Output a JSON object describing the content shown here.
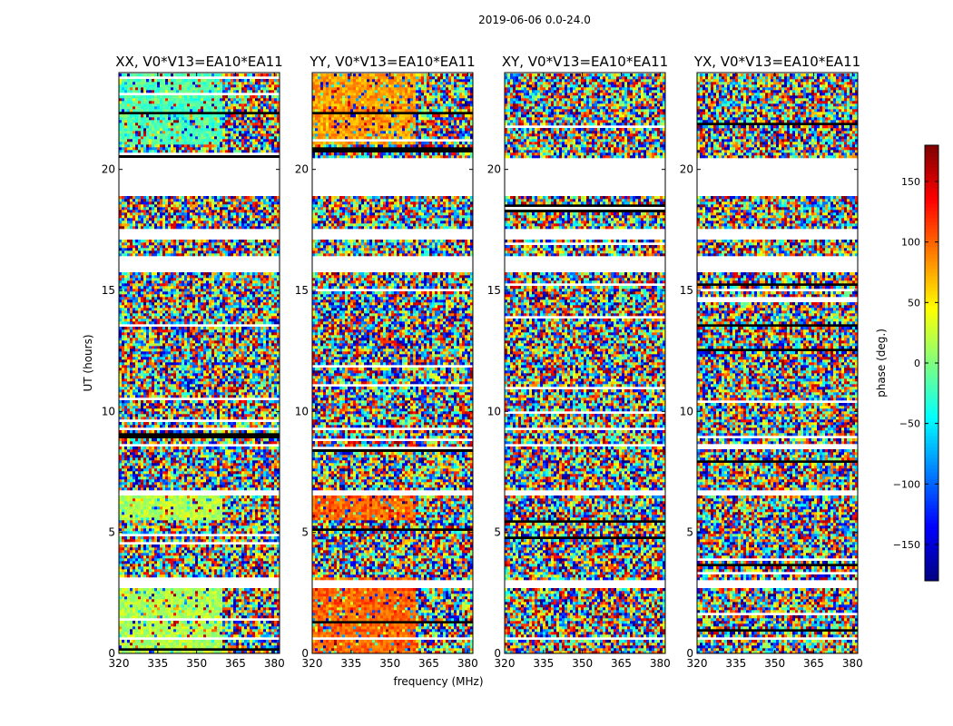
{
  "figure": {
    "suptitle": "2019-06-06 0.0-24.0"
  },
  "chart_data": {
    "type": "heatmap",
    "title": "2019-06-06 0.0-24.0",
    "xlabel": "frequency (MHz)",
    "ylabel": "UT (hours)",
    "xlim": [
      320,
      382
    ],
    "ylim": [
      0,
      24
    ],
    "x_ticks": [
      320,
      335,
      350,
      365,
      380
    ],
    "y_ticks": [
      0,
      5,
      10,
      15,
      20
    ],
    "panels": [
      {
        "title": "XX, V0*V13=EA10*EA11",
        "polarization": "XX"
      },
      {
        "title": "YY, V0*V13=EA10*EA11",
        "polarization": "YY"
      },
      {
        "title": "XY, V0*V13=EA10*EA11",
        "polarization": "XY"
      },
      {
        "title": "YX, V0*V13=EA10*EA11",
        "polarization": "YX"
      }
    ],
    "colorbar": {
      "label": "phase (deg.)",
      "range": [
        -180,
        180
      ],
      "ticks": [
        -150,
        -100,
        -50,
        0,
        50,
        100,
        150
      ],
      "tick_labels": [
        "−150",
        "−100",
        "−50",
        "0",
        "50",
        "100",
        "150"
      ],
      "colormap": "jet"
    },
    "flagged_ut_ranges": [
      [
        20.45,
        18.9
      ],
      [
        17.6,
        17.05
      ],
      [
        16.45,
        15.8
      ],
      [
        6.7,
        6.55
      ],
      [
        3.05,
        2.75
      ],
      [
        0.65,
        0.55
      ]
    ]
  }
}
